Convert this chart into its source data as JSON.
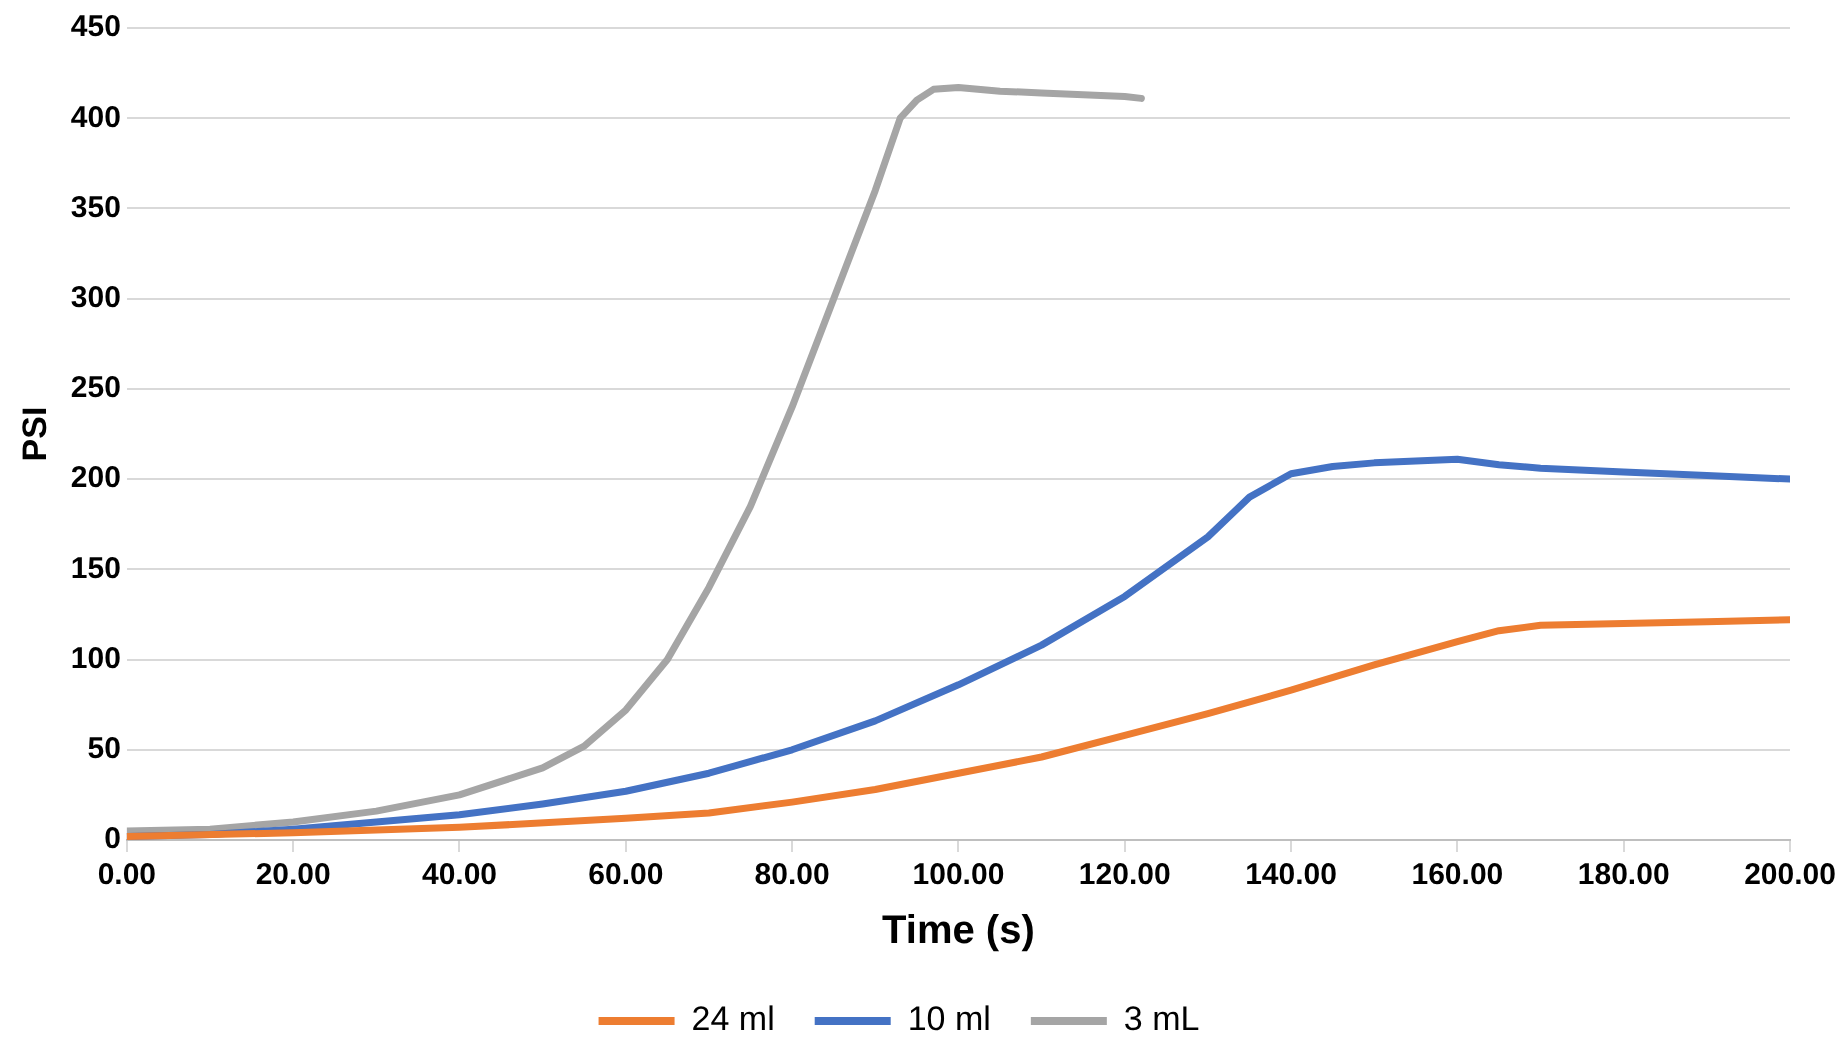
{
  "chart_data": {
    "type": "line",
    "xlabel": "Time (s)",
    "ylabel": "PSI",
    "xlim": [
      0,
      200
    ],
    "ylim": [
      0,
      450
    ],
    "xticks": [
      {
        "value": 0,
        "label": "0.00"
      },
      {
        "value": 20,
        "label": "20.00"
      },
      {
        "value": 40,
        "label": "40.00"
      },
      {
        "value": 60,
        "label": "60.00"
      },
      {
        "value": 80,
        "label": "80.00"
      },
      {
        "value": 100,
        "label": "100.00"
      },
      {
        "value": 120,
        "label": "120.00"
      },
      {
        "value": 140,
        "label": "140.00"
      },
      {
        "value": 160,
        "label": "160.00"
      },
      {
        "value": 180,
        "label": "180.00"
      },
      {
        "value": 200,
        "label": "200.00"
      }
    ],
    "yticks": [
      0,
      50,
      100,
      150,
      200,
      250,
      300,
      350,
      400,
      450
    ],
    "grid": "y",
    "legend": "bottom",
    "marker": "none",
    "line_style": "solid",
    "series": [
      {
        "name": "24 ml",
        "color": "#ed7d31",
        "x": [
          0,
          20,
          40,
          60,
          70,
          80,
          90,
          100,
          110,
          120,
          130,
          140,
          150,
          160,
          165,
          170,
          180,
          190,
          200
        ],
        "values": [
          2,
          4,
          7,
          12,
          15,
          21,
          28,
          37,
          46,
          58,
          70,
          83,
          97,
          110,
          116,
          119,
          120,
          121,
          122
        ]
      },
      {
        "name": "10 ml",
        "color": "#4472c4",
        "x": [
          0,
          10,
          20,
          30,
          40,
          50,
          60,
          70,
          80,
          90,
          100,
          110,
          120,
          130,
          135,
          140,
          145,
          150,
          155,
          160,
          165,
          170,
          180,
          190,
          200
        ],
        "values": [
          2,
          3,
          6,
          10,
          14,
          20,
          27,
          37,
          50,
          66,
          86,
          108,
          135,
          168,
          190,
          203,
          207,
          209,
          210,
          211,
          208,
          206,
          204,
          202,
          200
        ]
      },
      {
        "name": "3 mL",
        "color": "#a5a5a5",
        "x": [
          0,
          10,
          20,
          30,
          40,
          50,
          55,
          60,
          65,
          70,
          75,
          80,
          85,
          90,
          93,
          95,
          97,
          100,
          105,
          110,
          115,
          120,
          122
        ],
        "values": [
          5,
          6,
          10,
          16,
          25,
          40,
          52,
          72,
          100,
          140,
          185,
          240,
          300,
          360,
          400,
          410,
          416,
          417,
          415,
          414,
          413,
          412,
          411
        ]
      }
    ]
  }
}
